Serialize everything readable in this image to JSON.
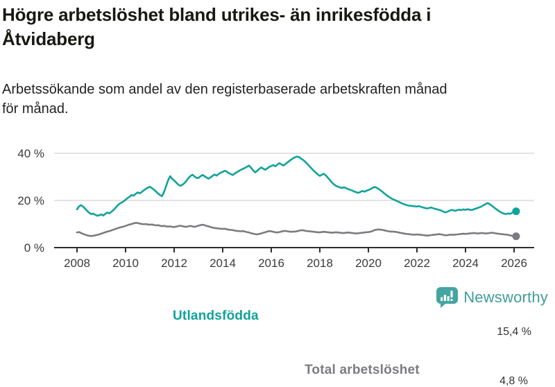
{
  "header": {
    "title_lines": [
      "Högre arbetslöshet bland utrikes- än inrikesfödda i",
      "Åtvidaberg"
    ],
    "subtitle_lines": [
      "Arbetssökande som andel av den registerbaserade arbetskraften månad",
      "för månad."
    ]
  },
  "branding": {
    "logo_label": "Newsworthy",
    "logo_color": "#45a5a0",
    "logo_text_color": "#3f9e99",
    "logo_icon": "newsworthy-speech-bubble-bar-chart-icon"
  },
  "chart_data": {
    "type": "line",
    "title": "Högre arbetslöshet bland utrikes- än inrikesfödda i Åtvidaberg",
    "subtitle": "Arbetssökande som andel av den registerbaserade arbetskraften månad för månad.",
    "grid": "horizontal-only",
    "legend_position": "inline-direct-labels",
    "x_axis": {
      "start_year": 2008,
      "start_month": 1,
      "frequency": "monthly",
      "ticks": [
        2008,
        2010,
        2012,
        2014,
        2016,
        2018,
        2020,
        2022,
        2024,
        2026
      ]
    },
    "y_axis": {
      "unit": "%",
      "range": [
        0,
        42
      ],
      "ticks": [
        {
          "value": 40,
          "label": "40 %"
        },
        {
          "value": 20,
          "label": "20 %"
        },
        {
          "value": 0,
          "label": "0 %"
        }
      ]
    },
    "series": [
      {
        "name": "Utlandsfödda",
        "color": "#0fa399",
        "end_value": 15.4,
        "end_label": "15,4 %",
        "values": [
          16.2,
          17.5,
          18.0,
          17.4,
          16.5,
          15.6,
          14.8,
          14.2,
          14.4,
          13.9,
          13.5,
          13.7,
          14.1,
          13.6,
          14.3,
          14.9,
          14.5,
          15.2,
          15.9,
          16.8,
          17.8,
          18.6,
          19.1,
          19.6,
          20.3,
          21.0,
          21.6,
          22.3,
          22.0,
          22.8,
          23.4,
          23.0,
          23.6,
          24.3,
          24.9,
          25.4,
          25.8,
          25.2,
          24.6,
          23.8,
          23.0,
          22.3,
          21.8,
          23.5,
          26.0,
          28.5,
          30.3,
          29.2,
          28.5,
          27.6,
          26.8,
          26.2,
          26.6,
          27.3,
          28.2,
          29.4,
          30.3,
          30.9,
          30.2,
          29.6,
          29.5,
          30.2,
          30.8,
          30.3,
          29.7,
          29.2,
          29.8,
          30.4,
          31.0,
          30.5,
          31.2,
          31.8,
          32.1,
          32.6,
          32.2,
          31.6,
          31.2,
          30.8,
          31.4,
          32.0,
          32.5,
          33.0,
          33.4,
          33.8,
          34.3,
          34.8,
          33.9,
          32.8,
          31.9,
          32.5,
          33.3,
          34.0,
          33.5,
          33.0,
          33.6,
          34.2,
          34.6,
          35.0,
          34.5,
          35.2,
          35.8,
          35.3,
          34.8,
          35.4,
          36.1,
          36.8,
          37.4,
          38.0,
          38.4,
          38.6,
          38.2,
          37.6,
          37.0,
          36.2,
          35.3,
          34.4,
          33.5,
          32.6,
          31.8,
          31.0,
          30.4,
          30.9,
          31.3,
          30.6,
          29.6,
          28.6,
          27.6,
          26.8,
          26.2,
          25.8,
          25.5,
          25.3,
          25.6,
          25.2,
          24.8,
          24.5,
          24.2,
          23.8,
          23.5,
          23.2,
          23.6,
          24.0,
          23.7,
          24.1,
          24.4,
          24.8,
          25.3,
          25.7,
          25.4,
          24.9,
          24.3,
          23.6,
          22.9,
          22.2,
          21.6,
          21.0,
          20.6,
          20.2,
          19.8,
          19.4,
          19.0,
          18.6,
          18.3,
          18.0,
          17.8,
          17.7,
          17.6,
          17.5,
          17.4,
          17.6,
          17.3,
          17.0,
          16.8,
          16.6,
          16.8,
          17.0,
          16.7,
          16.4,
          16.2,
          16.0,
          15.7,
          15.3,
          14.9,
          15.2,
          15.6,
          16.0,
          15.8,
          15.6,
          15.9,
          16.1,
          15.9,
          16.2,
          16.0,
          16.3,
          16.1,
          15.9,
          16.2,
          16.5,
          16.8,
          17.1,
          17.5,
          18.0,
          18.5,
          18.9,
          18.4,
          17.8,
          17.1,
          16.4,
          15.8,
          15.2,
          14.7,
          14.4,
          14.2,
          14.5,
          14.3,
          14.8,
          15.1,
          15.4
        ]
      },
      {
        "name": "Total arbetslöshet",
        "color": "#7b7c80",
        "end_value": 4.8,
        "end_label": "4,8 %",
        "values": [
          6.4,
          6.6,
          6.2,
          5.8,
          5.5,
          5.2,
          5.0,
          4.9,
          5.0,
          5.2,
          5.4,
          5.6,
          5.9,
          6.2,
          6.5,
          6.8,
          7.0,
          7.3,
          7.6,
          7.9,
          8.2,
          8.5,
          8.7,
          8.9,
          9.2,
          9.5,
          9.8,
          10.0,
          10.3,
          10.5,
          10.4,
          10.2,
          10.0,
          9.9,
          10.0,
          9.8,
          9.7,
          9.8,
          9.6,
          9.4,
          9.5,
          9.3,
          9.1,
          9.2,
          9.0,
          8.9,
          9.0,
          8.8,
          8.7,
          8.9,
          9.1,
          9.3,
          9.1,
          8.9,
          8.8,
          9.0,
          9.2,
          9.0,
          8.8,
          9.0,
          9.3,
          9.5,
          9.7,
          9.5,
          9.2,
          9.0,
          8.7,
          8.5,
          8.3,
          8.2,
          8.1,
          8.0,
          7.9,
          8.0,
          7.8,
          7.6,
          7.5,
          7.4,
          7.2,
          7.1,
          7.0,
          6.9,
          7.0,
          6.8,
          6.6,
          6.4,
          6.1,
          5.9,
          5.7,
          5.6,
          5.8,
          6.0,
          6.3,
          6.5,
          6.8,
          7.0,
          6.9,
          6.7,
          6.5,
          6.4,
          6.6,
          6.8,
          7.0,
          7.1,
          6.9,
          6.8,
          6.7,
          6.8,
          6.8,
          7.0,
          7.2,
          7.4,
          7.3,
          7.1,
          7.0,
          6.9,
          6.8,
          6.7,
          6.6,
          6.5,
          6.5,
          6.6,
          6.7,
          6.6,
          6.5,
          6.4,
          6.3,
          6.4,
          6.5,
          6.4,
          6.3,
          6.2,
          6.2,
          6.3,
          6.4,
          6.3,
          6.2,
          6.1,
          6.0,
          6.1,
          6.2,
          6.3,
          6.4,
          6.5,
          6.6,
          6.7,
          7.0,
          7.4,
          7.6,
          7.7,
          7.6,
          7.5,
          7.3,
          7.1,
          6.9,
          6.8,
          6.8,
          6.7,
          6.6,
          6.4,
          6.2,
          6.1,
          5.9,
          5.8,
          5.7,
          5.6,
          5.5,
          5.5,
          5.6,
          5.5,
          5.4,
          5.3,
          5.2,
          5.1,
          5.2,
          5.3,
          5.4,
          5.5,
          5.6,
          5.7,
          5.6,
          5.4,
          5.2,
          5.3,
          5.4,
          5.5,
          5.4,
          5.5,
          5.6,
          5.7,
          5.8,
          5.9,
          5.8,
          5.9,
          6.0,
          6.1,
          6.2,
          6.1,
          6.0,
          6.1,
          6.2,
          6.1,
          6.0,
          6.1,
          6.2,
          6.3,
          6.2,
          6.0,
          5.9,
          5.8,
          5.7,
          5.6,
          5.5,
          5.4,
          5.2,
          5.0,
          4.9,
          4.8
        ]
      }
    ],
    "colors": {
      "grid": "#dcdcdc",
      "axis": "#2e2e2e",
      "tick_label": "#3a3a3a",
      "annotation": "#333333"
    }
  }
}
